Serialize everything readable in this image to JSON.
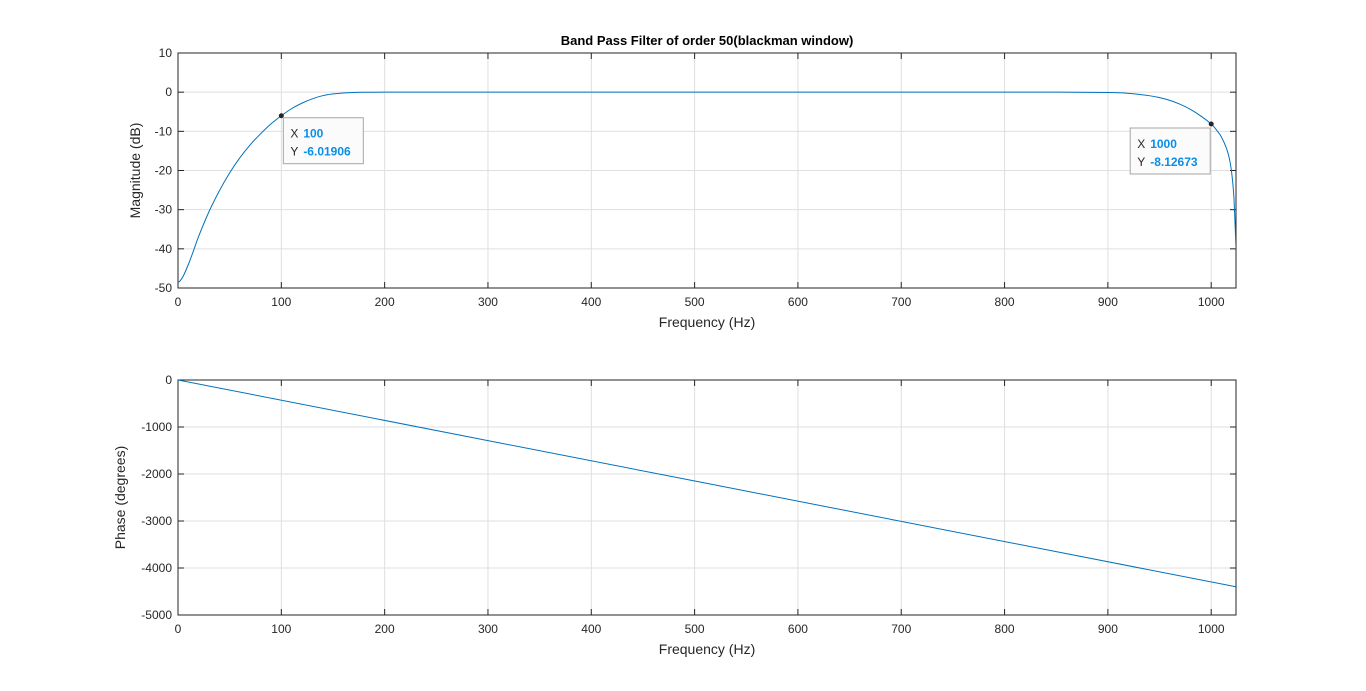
{
  "figure": {
    "title": "Band Pass Filter of order 50(blackman window)"
  },
  "colors": {
    "line": "#0072bd",
    "grid": "#dfdfdf",
    "axis": "#262626",
    "datatip_value": "#0a8ee8",
    "datatip_border": "#a6a6a6",
    "datatip_bg": "#fbfbfb"
  },
  "chart_data": [
    {
      "type": "line",
      "title": "Band Pass Filter of order 50(blackman window)",
      "xlabel": "Frequency (Hz)",
      "ylabel": "Magnitude (dB)",
      "xlim": [
        0,
        1024
      ],
      "ylim": [
        -50,
        10
      ],
      "grid": true,
      "xticks": [
        0,
        100,
        200,
        300,
        400,
        500,
        600,
        700,
        800,
        900,
        1000
      ],
      "yticks": [
        10,
        0,
        -10,
        -20,
        -30,
        -40,
        -50
      ],
      "series": [
        {
          "x": [
            0,
            2,
            5,
            10,
            15,
            20,
            30,
            40,
            50,
            60,
            70,
            80,
            90,
            100,
            110,
            120,
            130,
            140,
            150,
            160,
            170,
            180,
            190,
            200,
            250,
            300,
            400,
            500,
            600,
            700,
            800,
            850,
            900,
            920,
            940,
            950,
            960,
            970,
            980,
            990,
            1000,
            1005,
            1010,
            1015,
            1018,
            1020,
            1022,
            1024
          ],
          "y": [
            -48.5,
            -48.2,
            -47.0,
            -44.0,
            -40.5,
            -36.8,
            -30.5,
            -25.2,
            -20.6,
            -16.7,
            -13.4,
            -10.6,
            -8.1,
            -6.02,
            -4.2,
            -2.8,
            -1.7,
            -0.9,
            -0.45,
            -0.2,
            -0.08,
            -0.03,
            -0.01,
            0,
            0,
            0,
            0,
            0,
            0,
            0,
            0,
            0,
            -0.1,
            -0.3,
            -0.9,
            -1.4,
            -2.1,
            -3.1,
            -4.4,
            -6.1,
            -8.13,
            -9.6,
            -11.5,
            -14.5,
            -17.5,
            -21.0,
            -27.0,
            -40.0
          ]
        }
      ],
      "datatips": [
        {
          "x_label": "X",
          "x_value": "100",
          "y_label": "Y",
          "y_value": "-6.01906",
          "x": 100,
          "y": -6.01906
        },
        {
          "x_label": "X",
          "x_value": "1000",
          "y_label": "Y",
          "y_value": "-8.12673",
          "x": 1000,
          "y": -8.12673
        }
      ]
    },
    {
      "type": "line",
      "xlabel": "Frequency (Hz)",
      "ylabel": "Phase (degrees)",
      "xlim": [
        0,
        1024
      ],
      "ylim": [
        -5000,
        0
      ],
      "grid": true,
      "xticks": [
        0,
        100,
        200,
        300,
        400,
        500,
        600,
        700,
        800,
        900,
        1000
      ],
      "yticks": [
        0,
        -1000,
        -2000,
        -3000,
        -4000,
        -5000
      ],
      "series": [
        {
          "x": [
            0,
            1024
          ],
          "y": [
            0,
            -4400
          ]
        }
      ]
    }
  ]
}
